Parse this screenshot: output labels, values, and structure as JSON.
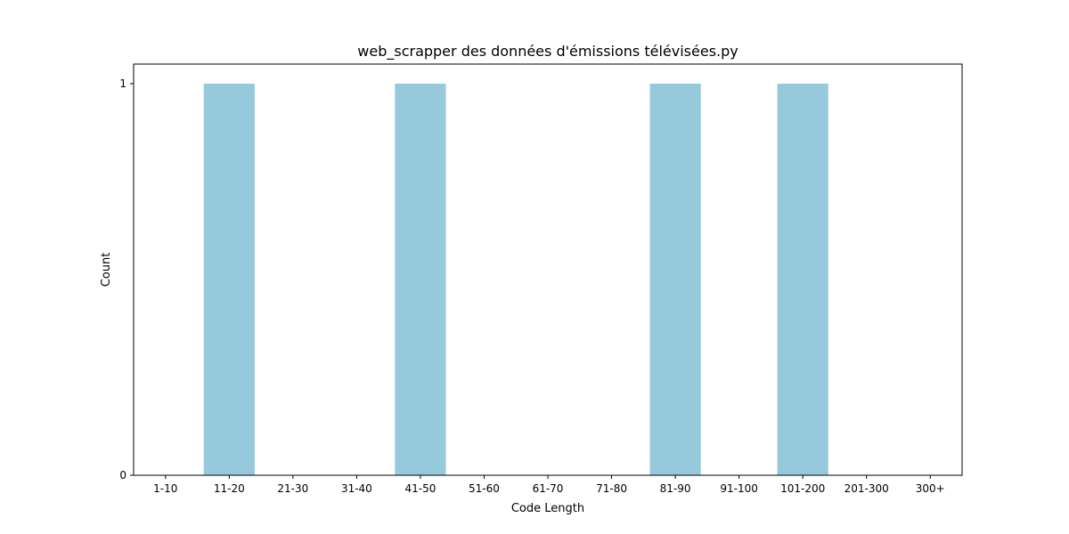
{
  "chart_data": {
    "type": "bar",
    "title": "web_scrapper des données d'émissions télévisées.py",
    "xlabel": "Code Length",
    "ylabel": "Count",
    "categories": [
      "1-10",
      "11-20",
      "21-30",
      "31-40",
      "41-50",
      "51-60",
      "61-70",
      "71-80",
      "81-90",
      "91-100",
      "101-200",
      "201-300",
      "300+"
    ],
    "values": [
      0,
      1,
      0,
      0,
      1,
      0,
      0,
      0,
      1,
      0,
      1,
      0,
      0
    ],
    "ylim": [
      0,
      1.05
    ],
    "yticks": [
      0,
      1
    ],
    "grid": false,
    "legend": "none",
    "bar_color": "#96c9dc"
  }
}
